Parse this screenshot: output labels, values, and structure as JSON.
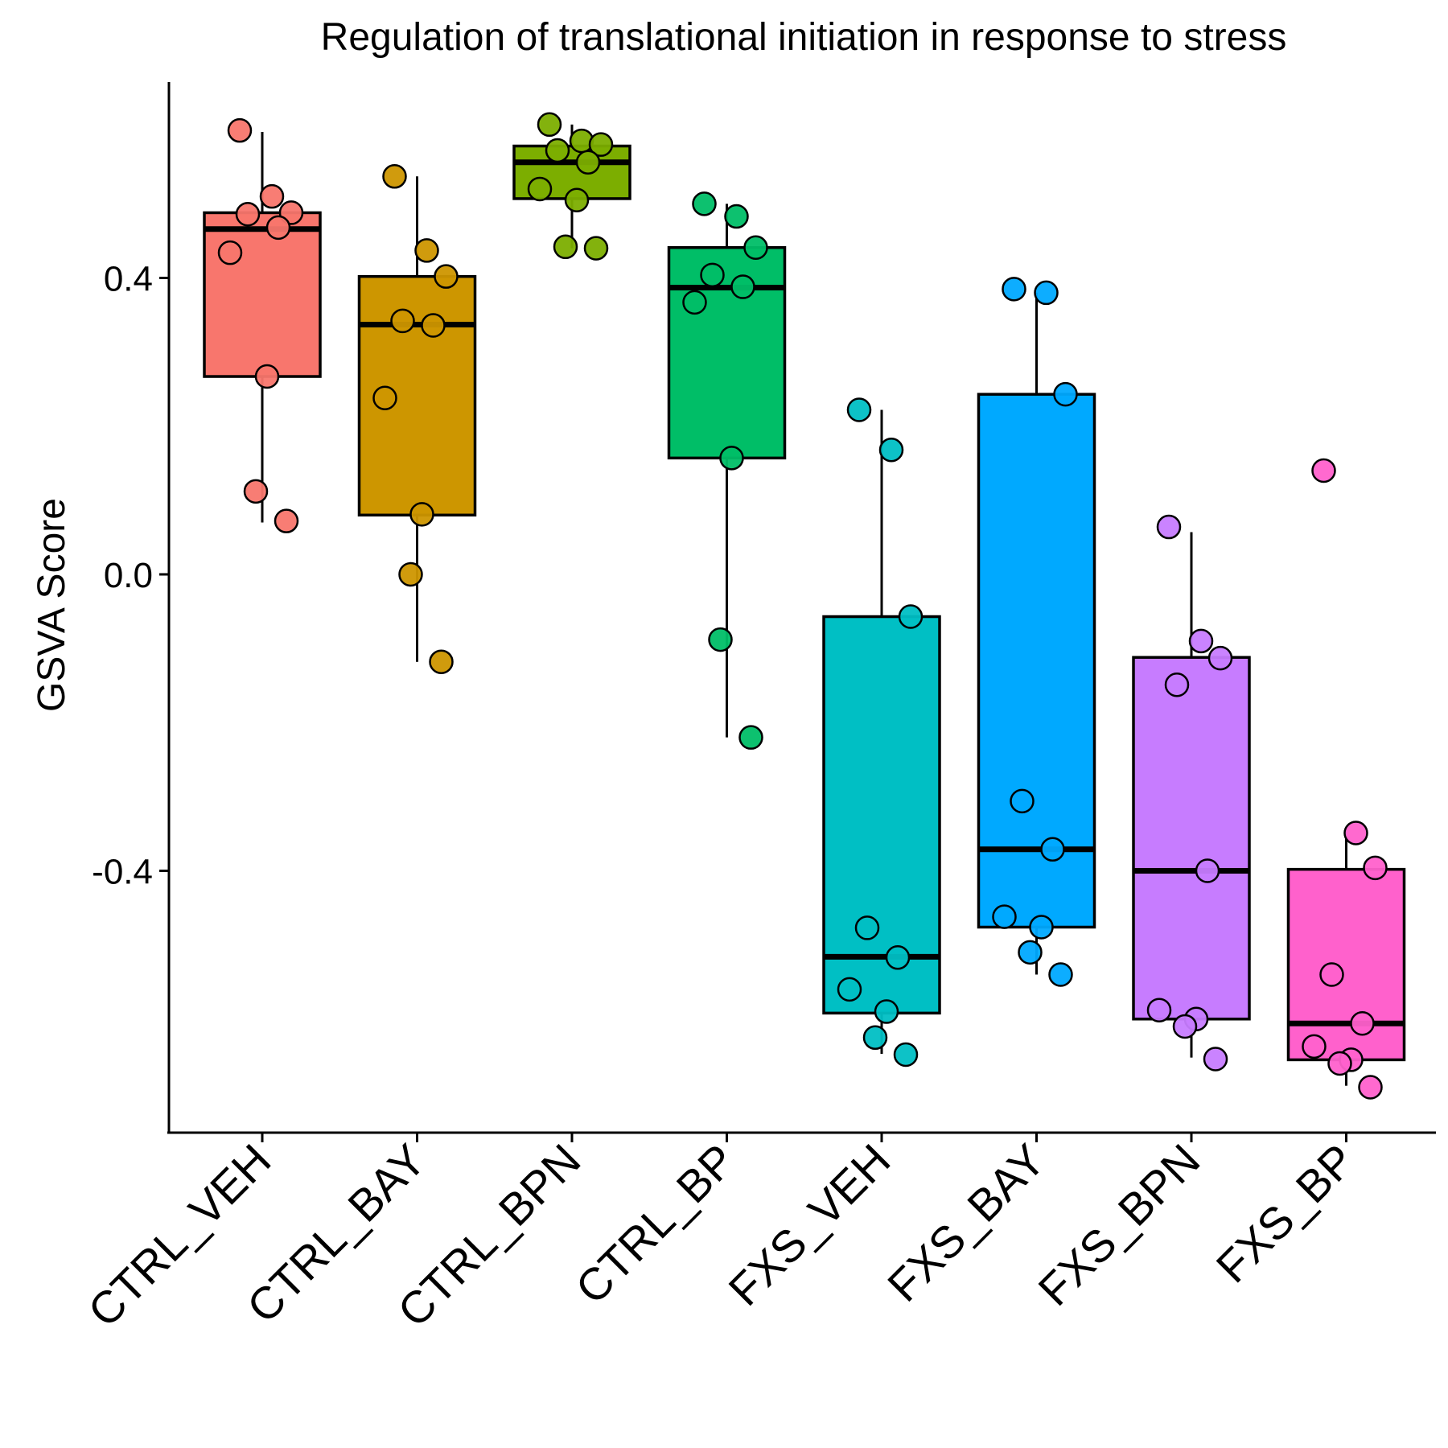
{
  "chart_data": {
    "type": "box",
    "title": "Regulation of translational initiation in response to stress",
    "xlabel": "",
    "ylabel": "GSVA Score",
    "ylim": [
      -0.75,
      0.67
    ],
    "yticks": [
      0.4,
      0.0,
      -0.4
    ],
    "ytick_labels": [
      "0.4",
      "0.0",
      "-0.4"
    ],
    "grid": false,
    "legend": "none",
    "categories": [
      "CTRL_VEH",
      "CTRL_BAY",
      "CTRL_BPN",
      "CTRL_BP",
      "FXS_VEH",
      "FXS_BAY",
      "FXS_BPN",
      "FXS_BP"
    ],
    "colors": [
      "#F8766D",
      "#CD9600",
      "#7CAE00",
      "#00BE67",
      "#00BFC4",
      "#00A9FF",
      "#C77CFF",
      "#FF61CC"
    ],
    "groups": [
      {
        "name": "CTRL_VEH",
        "q1": 0.267,
        "median": 0.466,
        "q3": 0.488,
        "whisker_low": 0.07,
        "whisker_high": 0.597,
        "points": [
          0.599,
          0.51,
          0.488,
          0.486,
          0.468,
          0.434,
          0.267,
          0.112,
          0.072
        ]
      },
      {
        "name": "CTRL_BAY",
        "q1": 0.08,
        "median": 0.337,
        "q3": 0.402,
        "whisker_low": -0.118,
        "whisker_high": 0.537,
        "points": [
          0.537,
          0.437,
          0.402,
          0.342,
          0.336,
          0.238,
          0.081,
          0.0,
          -0.118
        ]
      },
      {
        "name": "CTRL_BPN",
        "q1": 0.507,
        "median": 0.556,
        "q3": 0.578,
        "whisker_low": 0.44,
        "whisker_high": 0.607,
        "points": [
          0.607,
          0.585,
          0.58,
          0.572,
          0.556,
          0.52,
          0.505,
          0.442,
          0.44
        ]
      },
      {
        "name": "CTRL_BP",
        "q1": 0.157,
        "median": 0.387,
        "q3": 0.441,
        "whisker_low": -0.22,
        "whisker_high": 0.5,
        "points": [
          0.5,
          0.483,
          0.441,
          0.404,
          0.388,
          0.367,
          0.157,
          -0.088,
          -0.22
        ]
      },
      {
        "name": "FXS_VEH",
        "q1": -0.592,
        "median": -0.516,
        "q3": -0.057,
        "whisker_low": -0.647,
        "whisker_high": 0.222,
        "points": [
          0.222,
          0.168,
          -0.057,
          -0.477,
          -0.517,
          -0.56,
          -0.59,
          -0.625,
          -0.648
        ]
      },
      {
        "name": "FXS_BAY",
        "q1": -0.476,
        "median": -0.371,
        "q3": 0.243,
        "whisker_low": -0.54,
        "whisker_high": 0.38,
        "points": [
          0.385,
          0.38,
          0.243,
          -0.306,
          -0.371,
          -0.462,
          -0.476,
          -0.51,
          -0.54
        ]
      },
      {
        "name": "FXS_BPN",
        "q1": -0.6,
        "median": -0.4,
        "q3": -0.112,
        "whisker_low": -0.652,
        "whisker_high": 0.057,
        "points": [
          0.064,
          -0.09,
          -0.113,
          -0.149,
          -0.4,
          -0.588,
          -0.6,
          -0.61,
          -0.654
        ]
      },
      {
        "name": "FXS_BP",
        "q1": -0.655,
        "median": -0.606,
        "q3": -0.398,
        "whisker_low": -0.69,
        "whisker_high": -0.354,
        "points": [
          0.14,
          -0.349,
          -0.396,
          -0.54,
          -0.606,
          -0.637,
          -0.655,
          -0.66,
          -0.692
        ]
      }
    ]
  }
}
